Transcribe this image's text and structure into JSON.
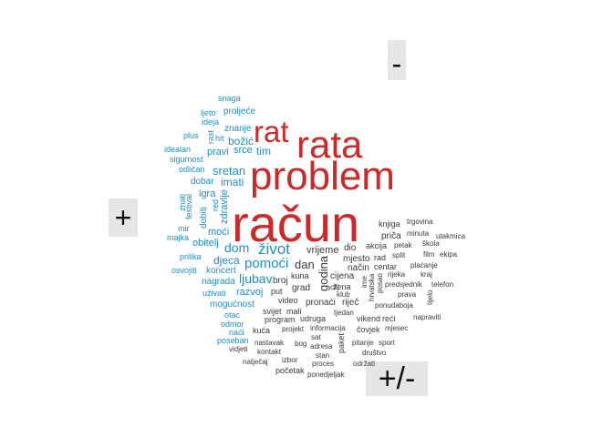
{
  "labels": {
    "neg": "-",
    "pos": "+",
    "neu": "+/-"
  },
  "colors": {
    "positive": "#1a8fc8",
    "negative": "#cc2a2a",
    "neutral": "#3a3a3a"
  },
  "words": {
    "racun": "račun",
    "problem": "problem",
    "rata": "rata",
    "rat": "rat",
    "snaga": "snaga",
    "ljeto": "ljeto",
    "proljece": "proljeće",
    "ideja": "ideja",
    "znanje": "znanje",
    "plus": "plus",
    "rast": "rast",
    "hit": "hit",
    "bozic": "božić",
    "idealan": "idealan",
    "pravi": "pravi",
    "srce": "srce",
    "tim": "tim",
    "sigurnost": "sigurnost",
    "odlican": "odličan",
    "sretan": "sretan",
    "dobar": "dobar",
    "imati": "imati",
    "znati": "znati",
    "festival": "festival",
    "igra": "igra",
    "red": "red",
    "zdravlje": "zdravlje",
    "mir": "mir",
    "dobiti": "dobiti",
    "majka": "majka",
    "moci": "moći",
    "obitelj": "obitelj",
    "dom": "dom",
    "zivot": "život",
    "prilika": "prilika",
    "djeca": "djeca",
    "pomoci": "pomoći",
    "osvojiti": "osvojiti",
    "koncert": "koncert",
    "ljubav": "ljubav",
    "nagrada": "nagrada",
    "uzivati": "uživati",
    "razvoj": "razvoj",
    "mogucnost": "mogućnost",
    "otac": "otac",
    "odmor": "odmor",
    "naci": "naći",
    "poseban": "poseban",
    "knjiga": "knjiga",
    "trgovina": "trgovina",
    "prica": "priča",
    "minuta": "minuta",
    "utakmica": "utakmica",
    "vrijeme": "vrijeme",
    "dio": "dio",
    "akcija": "akcija",
    "petak": "petak",
    "skola": "škola",
    "mjesto": "mjesto",
    "rad": "rad",
    "split": "split",
    "film": "film",
    "ekipa": "ekipa",
    "godina": "godina",
    "dan": "dan",
    "nacin": "način",
    "centar": "centar",
    "placanje": "plaćanje",
    "kuna": "kuna",
    "broj": "broj",
    "cijena": "cijena",
    "rijeka": "rijeka",
    "kraj": "kraj",
    "cilj": "cilj",
    "grad": "grad",
    "zena": "žena",
    "ime": "ime",
    "hrvatska": "hrvatska",
    "predsjednik": "predsjednik",
    "telefon": "telefon",
    "put": "put",
    "klub": "klub",
    "prava": "prava",
    "tijelo": "tijelo",
    "video": "video",
    "pronaci": "pronaći",
    "rijec": "riječ",
    "posao": "posao",
    "ponudaboja": "ponudaboja",
    "svijet": "svijet",
    "mali": "mali",
    "tjedan": "tjedan",
    "program": "program",
    "udruga": "udruga",
    "vikend": "vikend",
    "reci": "reći",
    "napraviti": "napraviti",
    "kuca": "kuća",
    "projekt": "projekt",
    "informacija": "informacija",
    "covjek": "čovjek",
    "mjesec": "mjesec",
    "sat": "sat",
    "pitanje": "pitanje",
    "nastavak": "nastavak",
    "bog": "bog",
    "paket": "paket",
    "sport": "sport",
    "vidjeti": "vidjeti",
    "adresa": "adresa",
    "kontakt": "kontakt",
    "stan": "stan",
    "drustvo": "društvo",
    "natjecaj": "natječaj",
    "izbor": "izbor",
    "proces": "proces",
    "odrzati": "održati",
    "pocetak": "početak",
    "ponedjeljak": "ponedjeljak"
  }
}
